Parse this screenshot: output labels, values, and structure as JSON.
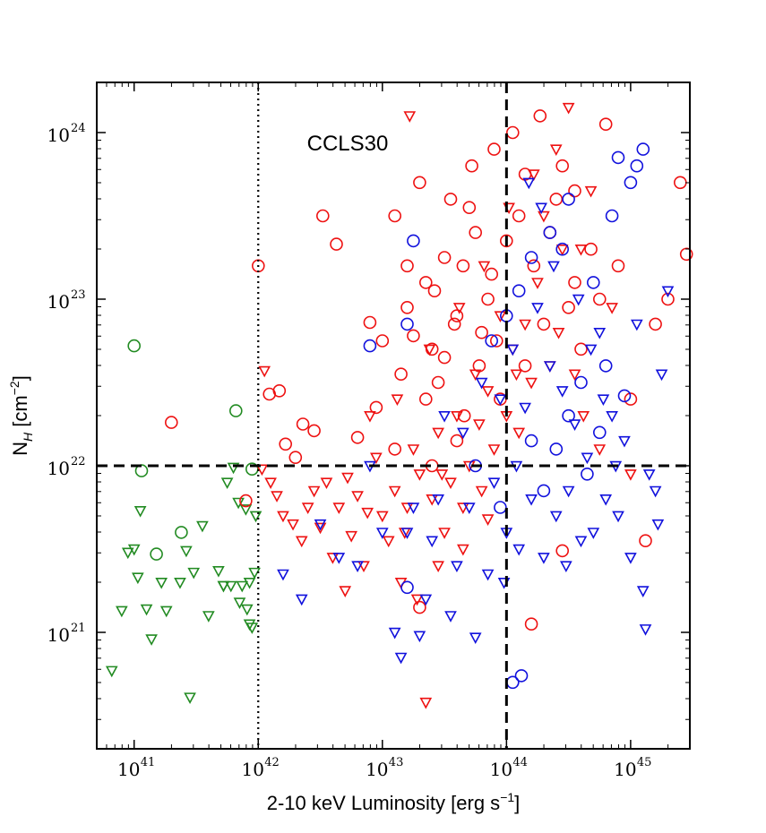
{
  "chart_data": {
    "type": "scatter",
    "title": "",
    "annotation": "CCLS30",
    "xlabel": {
      "main": "2-10 keV Luminosity [erg s",
      "sup": "−1",
      "close": "]"
    },
    "ylabel": {
      "main": "N",
      "sub": "H",
      "unit": " [cm",
      "sup": "−2",
      "close": "]"
    },
    "xscale": "log",
    "yscale": "log",
    "xlim": [
      5e+40,
      3e+45
    ],
    "ylim": [
      2e+20,
      2e+24
    ],
    "xticks": [
      {
        "value": 1e+41,
        "base": "10",
        "exp": "41"
      },
      {
        "value": 1e+42,
        "base": "10",
        "exp": "42"
      },
      {
        "value": 1e+43,
        "base": "10",
        "exp": "43"
      },
      {
        "value": 1e+44,
        "base": "10",
        "exp": "44"
      },
      {
        "value": 1e+45,
        "base": "10",
        "exp": "45"
      }
    ],
    "yticks": [
      {
        "value": 1e+21,
        "base": "10",
        "exp": "21"
      },
      {
        "value": 1e+22,
        "base": "10",
        "exp": "22"
      },
      {
        "value": 1e+23,
        "base": "10",
        "exp": "23"
      },
      {
        "value": 1e+24,
        "base": "10",
        "exp": "24"
      }
    ],
    "reference_lines": [
      {
        "orientation": "vertical",
        "value": 1e+42,
        "style": "dotted"
      },
      {
        "orientation": "vertical",
        "value": 1e+44,
        "style": "dashed"
      },
      {
        "orientation": "horizontal",
        "value": 1e+22,
        "style": "dashed"
      }
    ],
    "colors": {
      "green": "#228B22",
      "red": "#ee1111",
      "blue": "#1111dd"
    },
    "series": [
      {
        "name": "green",
        "color": "green",
        "circles": [
          [
            41.0,
            22.72
          ],
          [
            41.06,
            21.97
          ],
          [
            41.18,
            21.47
          ],
          [
            41.38,
            21.6
          ],
          [
            41.82,
            22.33
          ],
          [
            41.95,
            21.98
          ]
        ],
        "triangles": [
          [
            40.82,
            20.77
          ],
          [
            40.9,
            21.13
          ],
          [
            40.95,
            21.48
          ],
          [
            41.0,
            21.5
          ],
          [
            41.05,
            21.73
          ],
          [
            41.03,
            21.33
          ],
          [
            41.1,
            21.14
          ],
          [
            41.14,
            20.96
          ],
          [
            41.22,
            21.3
          ],
          [
            41.26,
            21.13
          ],
          [
            41.37,
            21.3
          ],
          [
            41.42,
            21.49
          ],
          [
            41.48,
            21.36
          ],
          [
            41.45,
            20.61
          ],
          [
            41.55,
            21.64
          ],
          [
            41.6,
            21.1
          ],
          [
            41.68,
            21.37
          ],
          [
            41.72,
            21.28
          ],
          [
            41.75,
            21.9
          ],
          [
            41.78,
            21.28
          ],
          [
            41.8,
            21.99
          ],
          [
            41.84,
            21.78
          ],
          [
            41.87,
            21.28
          ],
          [
            41.9,
            21.74
          ],
          [
            41.91,
            21.14
          ],
          [
            41.93,
            21.3
          ],
          [
            41.95,
            21.03
          ],
          [
            41.97,
            21.36
          ],
          [
            41.98,
            21.7
          ],
          [
            41.85,
            21.18
          ],
          [
            41.72,
            21.28
          ],
          [
            41.93,
            21.05
          ]
        ]
      },
      {
        "name": "red",
        "color": "red",
        "circles": [
          [
            41.3,
            22.26
          ],
          [
            42.0,
            23.2
          ],
          [
            41.9,
            21.79
          ],
          [
            42.09,
            22.43
          ],
          [
            42.17,
            22.45
          ],
          [
            42.22,
            22.13
          ],
          [
            42.3,
            22.05
          ],
          [
            42.36,
            22.25
          ],
          [
            42.45,
            22.21
          ],
          [
            42.52,
            23.5
          ],
          [
            42.63,
            23.33
          ],
          [
            42.8,
            22.17
          ],
          [
            42.9,
            22.86
          ],
          [
            42.95,
            22.35
          ],
          [
            43.0,
            22.75
          ],
          [
            43.1,
            22.1
          ],
          [
            43.15,
            22.55
          ],
          [
            43.2,
            22.95
          ],
          [
            43.3,
            23.7
          ],
          [
            43.35,
            23.1
          ],
          [
            43.4,
            22.7
          ],
          [
            43.45,
            22.5
          ],
          [
            43.5,
            23.25
          ],
          [
            43.55,
            23.6
          ],
          [
            43.6,
            22.9
          ],
          [
            43.66,
            22.3
          ],
          [
            43.72,
            23.8
          ],
          [
            43.75,
            23.4
          ],
          [
            43.8,
            22.8
          ],
          [
            43.85,
            23.0
          ],
          [
            43.9,
            23.9
          ],
          [
            43.95,
            22.4
          ],
          [
            44.05,
            24.0
          ],
          [
            44.1,
            23.5
          ],
          [
            44.15,
            22.6
          ],
          [
            44.22,
            23.2
          ],
          [
            44.27,
            24.1
          ],
          [
            44.35,
            23.4
          ],
          [
            44.45,
            23.8
          ],
          [
            44.5,
            22.95
          ],
          [
            44.55,
            23.65
          ],
          [
            44.6,
            22.7
          ],
          [
            44.68,
            23.3
          ],
          [
            44.75,
            23.0
          ],
          [
            44.8,
            24.05
          ],
          [
            44.9,
            23.2
          ],
          [
            45.0,
            22.4
          ],
          [
            45.12,
            21.55
          ],
          [
            45.2,
            22.85
          ],
          [
            45.3,
            23.0
          ],
          [
            45.4,
            23.7
          ],
          [
            45.45,
            23.27
          ],
          [
            44.2,
            21.05
          ],
          [
            44.45,
            21.49
          ],
          [
            43.3,
            21.15
          ],
          [
            43.4,
            22.0
          ],
          [
            43.6,
            22.15
          ],
          [
            43.7,
            23.55
          ],
          [
            43.2,
            23.2
          ],
          [
            43.1,
            23.5
          ],
          [
            43.5,
            22.65
          ],
          [
            44.4,
            23.6
          ],
          [
            43.88,
            23.15
          ],
          [
            44.0,
            23.35
          ],
          [
            43.25,
            22.78
          ],
          [
            43.42,
            23.05
          ],
          [
            43.58,
            22.85
          ],
          [
            43.78,
            22.6
          ],
          [
            43.92,
            22.75
          ],
          [
            44.3,
            22.85
          ],
          [
            43.35,
            22.4
          ],
          [
            43.65,
            23.2
          ],
          [
            44.15,
            23.75
          ],
          [
            44.55,
            23.1
          ]
        ],
        "triangles": [
          [
            42.03,
            21.98
          ],
          [
            42.05,
            22.57
          ],
          [
            42.1,
            21.9
          ],
          [
            42.15,
            21.82
          ],
          [
            42.2,
            21.7
          ],
          [
            42.28,
            21.65
          ],
          [
            42.35,
            21.55
          ],
          [
            42.4,
            21.75
          ],
          [
            42.45,
            21.85
          ],
          [
            42.5,
            21.63
          ],
          [
            42.55,
            21.9
          ],
          [
            42.6,
            21.45
          ],
          [
            42.65,
            21.75
          ],
          [
            42.7,
            21.25
          ],
          [
            42.75,
            21.58
          ],
          [
            42.8,
            21.82
          ],
          [
            42.85,
            21.4
          ],
          [
            42.9,
            22.3
          ],
          [
            42.95,
            22.05
          ],
          [
            43.0,
            21.7
          ],
          [
            43.05,
            21.55
          ],
          [
            43.1,
            21.85
          ],
          [
            43.15,
            21.3
          ],
          [
            43.2,
            21.75
          ],
          [
            43.25,
            22.1
          ],
          [
            43.3,
            21.95
          ],
          [
            43.35,
            20.58
          ],
          [
            43.4,
            21.8
          ],
          [
            43.45,
            22.2
          ],
          [
            43.5,
            21.6
          ],
          [
            43.55,
            21.9
          ],
          [
            43.6,
            22.3
          ],
          [
            43.65,
            21.75
          ],
          [
            43.7,
            22.0
          ],
          [
            43.75,
            22.55
          ],
          [
            43.8,
            21.85
          ],
          [
            43.85,
            22.45
          ],
          [
            43.9,
            22.1
          ],
          [
            43.95,
            22.9
          ],
          [
            44.0,
            22.3
          ],
          [
            44.05,
            22.7
          ],
          [
            44.1,
            22.2
          ],
          [
            44.15,
            22.85
          ],
          [
            44.2,
            22.5
          ],
          [
            44.25,
            23.1
          ],
          [
            44.3,
            23.5
          ],
          [
            44.35,
            22.6
          ],
          [
            44.4,
            23.9
          ],
          [
            44.45,
            23.3
          ],
          [
            44.5,
            24.15
          ],
          [
            44.55,
            22.55
          ],
          [
            44.6,
            23.3
          ],
          [
            44.68,
            23.65
          ],
          [
            44.75,
            22.1
          ],
          [
            44.85,
            22.95
          ],
          [
            45.0,
            21.95
          ],
          [
            43.22,
            24.1
          ],
          [
            43.28,
            21.2
          ],
          [
            43.45,
            21.4
          ],
          [
            43.65,
            21.5
          ],
          [
            43.85,
            21.68
          ],
          [
            42.72,
            21.93
          ],
          [
            42.88,
            21.72
          ],
          [
            43.12,
            22.4
          ],
          [
            43.38,
            22.7
          ],
          [
            43.62,
            22.95
          ],
          [
            43.82,
            23.2
          ],
          [
            44.02,
            23.55
          ],
          [
            44.22,
            23.75
          ],
          [
            44.42,
            22.8
          ],
          [
            44.62,
            22.3
          ],
          [
            43.18,
            21.6
          ],
          [
            43.48,
            21.95
          ],
          [
            43.78,
            22.25
          ],
          [
            44.08,
            22.55
          ]
        ]
      },
      {
        "name": "blue",
        "color": "blue",
        "circles": [
          [
            43.25,
            23.35
          ],
          [
            42.9,
            22.72
          ],
          [
            43.2,
            22.85
          ],
          [
            43.88,
            22.75
          ],
          [
            44.0,
            22.9
          ],
          [
            44.1,
            23.05
          ],
          [
            44.2,
            23.25
          ],
          [
            44.35,
            23.4
          ],
          [
            44.5,
            23.6
          ],
          [
            44.6,
            22.5
          ],
          [
            44.7,
            23.1
          ],
          [
            44.8,
            22.6
          ],
          [
            44.85,
            23.5
          ],
          [
            44.9,
            23.85
          ],
          [
            45.0,
            23.7
          ],
          [
            45.05,
            23.8
          ],
          [
            45.1,
            23.9
          ],
          [
            44.95,
            22.42
          ],
          [
            44.75,
            22.2
          ],
          [
            44.65,
            21.95
          ],
          [
            44.5,
            22.3
          ],
          [
            44.4,
            22.1
          ],
          [
            44.3,
            21.85
          ],
          [
            44.2,
            22.15
          ],
          [
            44.12,
            20.74
          ],
          [
            44.05,
            20.7
          ],
          [
            43.2,
            21.27
          ],
          [
            43.75,
            22.0
          ],
          [
            43.95,
            21.75
          ],
          [
            44.45,
            23.3
          ]
        ],
        "triangles": [
          [
            42.2,
            21.35
          ],
          [
            42.35,
            21.2
          ],
          [
            42.5,
            21.65
          ],
          [
            42.65,
            21.45
          ],
          [
            42.8,
            21.4
          ],
          [
            42.9,
            22.0
          ],
          [
            43.0,
            21.6
          ],
          [
            43.1,
            21.0
          ],
          [
            43.15,
            20.85
          ],
          [
            43.2,
            21.6
          ],
          [
            43.25,
            21.75
          ],
          [
            43.3,
            20.98
          ],
          [
            43.35,
            21.2
          ],
          [
            43.4,
            21.55
          ],
          [
            43.45,
            21.8
          ],
          [
            43.5,
            22.3
          ],
          [
            43.55,
            21.1
          ],
          [
            43.6,
            21.4
          ],
          [
            43.65,
            22.2
          ],
          [
            43.7,
            21.75
          ],
          [
            43.75,
            20.97
          ],
          [
            43.8,
            22.5
          ],
          [
            43.85,
            21.35
          ],
          [
            43.9,
            21.9
          ],
          [
            43.95,
            22.4
          ],
          [
            44.0,
            21.6
          ],
          [
            44.05,
            22.7
          ],
          [
            44.1,
            21.5
          ],
          [
            44.15,
            22.35
          ],
          [
            44.2,
            21.8
          ],
          [
            44.25,
            22.95
          ],
          [
            44.3,
            21.45
          ],
          [
            44.35,
            22.6
          ],
          [
            44.4,
            21.7
          ],
          [
            44.45,
            22.45
          ],
          [
            44.5,
            21.85
          ],
          [
            44.55,
            22.25
          ],
          [
            44.6,
            21.55
          ],
          [
            44.65,
            22.05
          ],
          [
            44.7,
            21.6
          ],
          [
            44.75,
            22.8
          ],
          [
            44.8,
            21.8
          ],
          [
            44.85,
            22.3
          ],
          [
            44.9,
            21.7
          ],
          [
            44.95,
            22.15
          ],
          [
            45.0,
            21.45
          ],
          [
            45.05,
            22.85
          ],
          [
            45.1,
            21.25
          ],
          [
            45.15,
            21.95
          ],
          [
            45.2,
            21.85
          ],
          [
            45.25,
            22.55
          ],
          [
            45.3,
            23.05
          ],
          [
            44.18,
            23.7
          ],
          [
            44.28,
            23.55
          ],
          [
            44.38,
            23.2
          ],
          [
            44.08,
            22.0
          ],
          [
            43.98,
            21.3
          ],
          [
            44.58,
            23.0
          ],
          [
            44.68,
            22.7
          ],
          [
            44.78,
            22.4
          ],
          [
            45.12,
            21.02
          ],
          [
            45.22,
            21.65
          ],
          [
            44.48,
            21.4
          ],
          [
            44.88,
            22.0
          ]
        ]
      }
    ]
  }
}
